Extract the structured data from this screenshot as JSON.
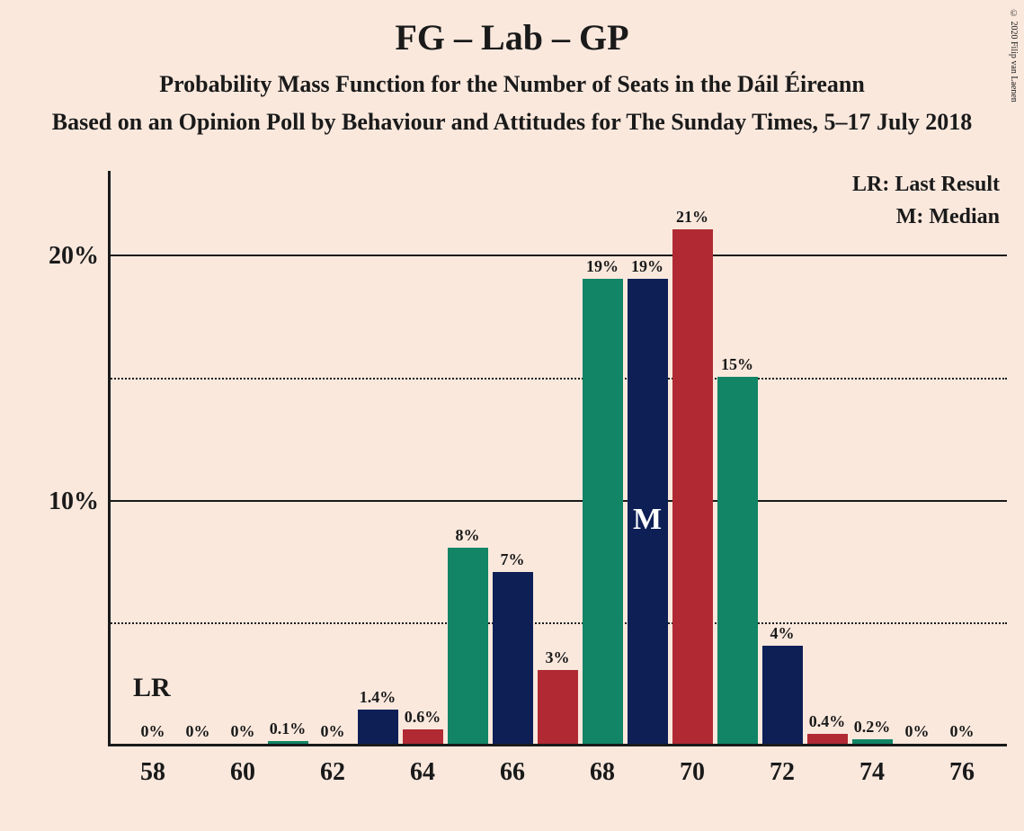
{
  "title": "FG – Lab – GP",
  "subtitle1": "Probability Mass Function for the Number of Seats in the Dáil Éireann",
  "subtitle2": "Based on an Opinion Poll by Behaviour and Attitudes for The Sunday Times, 5–17 July 2018",
  "copyright": "© 2020 Filip van Laenen",
  "legend": {
    "lr": "LR: Last Result",
    "m": "M: Median"
  },
  "lr_marker": "LR",
  "median_marker": "M",
  "chart": {
    "type": "bar",
    "background_color": "#fae8dd",
    "text_color": "#1a1a1a",
    "title_fontsize": 40,
    "subtitle_fontsize": 26,
    "axis_label_fontsize": 28,
    "bar_label_fontsize": 18,
    "legend_fontsize": 24,
    "x_ticks": [
      58,
      60,
      62,
      64,
      66,
      68,
      70,
      72,
      74,
      76
    ],
    "x_min": 57,
    "x_max": 77,
    "y_ticks_solid": [
      10,
      20
    ],
    "y_ticks_dotted": [
      5,
      15
    ],
    "y_max": 23.5,
    "y_tick_labels": [
      "10%",
      "20%"
    ],
    "bar_width_units": 0.9,
    "colors": {
      "green": "#118565",
      "navy": "#0e1f56",
      "red": "#ba2b33"
    },
    "bars": [
      {
        "x": 58,
        "value": 0,
        "label": "0%",
        "color": "#118565"
      },
      {
        "x": 59,
        "value": 0,
        "label": "0%",
        "color": "#0e1f56"
      },
      {
        "x": 60,
        "value": 0,
        "label": "0%",
        "color": "#b12a33"
      },
      {
        "x": 61,
        "value": 0.1,
        "label": "0.1%",
        "color": "#118565"
      },
      {
        "x": 62,
        "value": 0,
        "label": "0%",
        "color": "#0e1f56"
      },
      {
        "x": 63,
        "value": 1.4,
        "label": "1.4%",
        "color": "#0e1f56"
      },
      {
        "x": 64,
        "value": 0.6,
        "label": "0.6%",
        "color": "#b12a33"
      },
      {
        "x": 65,
        "value": 8,
        "label": "8%",
        "color": "#118565"
      },
      {
        "x": 66,
        "value": 7,
        "label": "7%",
        "color": "#0e1f56"
      },
      {
        "x": 67,
        "value": 3,
        "label": "3%",
        "color": "#b12a33"
      },
      {
        "x": 68,
        "value": 19,
        "label": "19%",
        "color": "#118565"
      },
      {
        "x": 69,
        "value": 19,
        "label": "19%",
        "color": "#0e1f56",
        "median": true
      },
      {
        "x": 70,
        "value": 21,
        "label": "21%",
        "color": "#b12a33"
      },
      {
        "x": 71,
        "value": 15,
        "label": "15%",
        "color": "#118565"
      },
      {
        "x": 72,
        "value": 4,
        "label": "4%",
        "color": "#0e1f56"
      },
      {
        "x": 73,
        "value": 0.4,
        "label": "0.4%",
        "color": "#b12a33"
      },
      {
        "x": 74,
        "value": 0.2,
        "label": "0.2%",
        "color": "#118565"
      },
      {
        "x": 75,
        "value": 0,
        "label": "0%",
        "color": "#0e1f56"
      },
      {
        "x": 76,
        "value": 0,
        "label": "0%",
        "color": "#b12a33"
      }
    ],
    "lr_x": 58
  }
}
